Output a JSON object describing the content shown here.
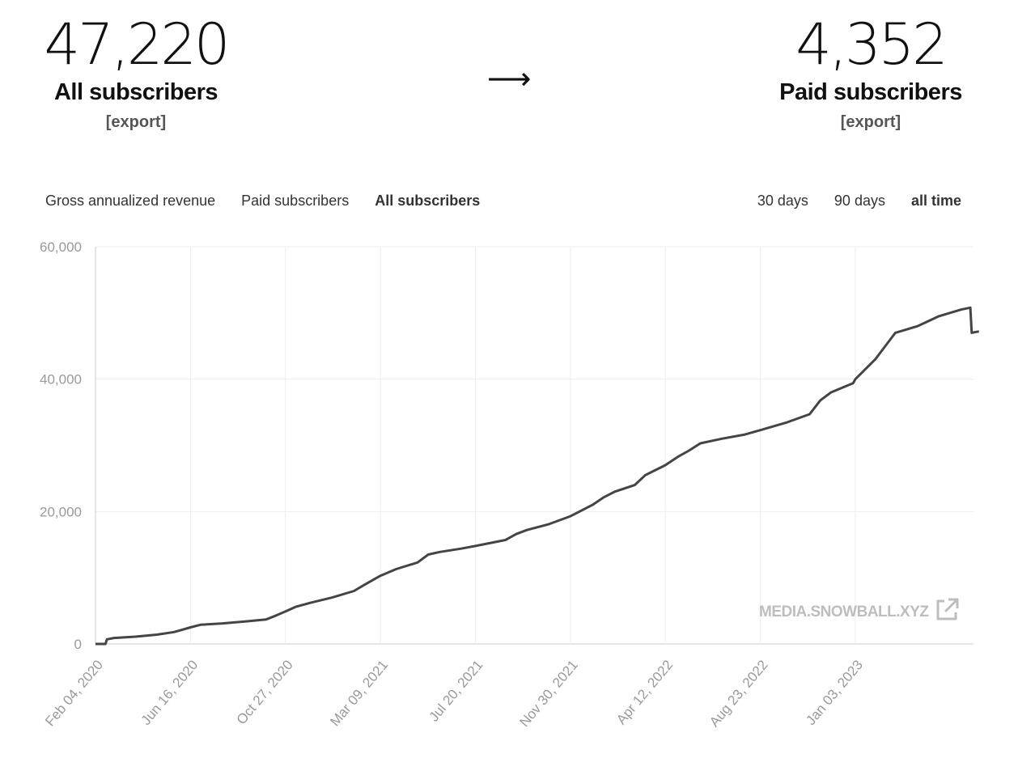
{
  "summary": {
    "all": {
      "value": "47,220",
      "label": "All subscribers",
      "export_label": "[export]"
    },
    "arrow": "⟶",
    "paid": {
      "value": "4,352",
      "label": "Paid subscribers",
      "export_label": "[export]"
    }
  },
  "tabs": [
    {
      "label": "Gross annualized revenue",
      "active": false
    },
    {
      "label": "Paid subscribers",
      "active": false
    },
    {
      "label": "All subscribers",
      "active": true
    }
  ],
  "ranges": [
    {
      "label": "30 days",
      "active": false
    },
    {
      "label": "90 days",
      "active": false
    },
    {
      "label": "all time",
      "active": true
    }
  ],
  "watermark": {
    "text": "MEDIA.SNOWBALL.XYZ",
    "icon": "external-link-icon"
  },
  "colors": {
    "line": "#444444",
    "grid": "#eeeeee",
    "axis": "#cccccc",
    "tick": "#999999"
  },
  "chart_data": {
    "type": "line",
    "x_start": "2020-02-04",
    "ylim": [
      0,
      60000
    ],
    "y_ticks": [
      0,
      20000,
      40000,
      60000
    ],
    "y_tick_labels": [
      "0",
      "20,000",
      "40,000",
      "60,000"
    ],
    "x_ticks": [
      "2020-02-04",
      "2020-06-16",
      "2020-10-27",
      "2021-03-09",
      "2021-07-20",
      "2021-11-30",
      "2022-04-12",
      "2022-08-23",
      "2023-01-03"
    ],
    "x_tick_labels": [
      "Feb 04, 2020",
      "Jun 16, 2020",
      "Oct 27, 2020",
      "Mar 09, 2021",
      "Jul 20, 2021",
      "Nov 30, 2021",
      "Apr 12, 2022",
      "Aug 23, 2022",
      "Jan 03, 2023"
    ],
    "grid": true,
    "series": [
      {
        "points": [
          [
            "2020-02-04",
            0
          ],
          [
            "2020-02-18",
            0
          ],
          [
            "2020-02-20",
            700
          ],
          [
            "2020-03-01",
            900
          ],
          [
            "2020-03-31",
            1100
          ],
          [
            "2020-04-30",
            1400
          ],
          [
            "2020-05-24",
            1800
          ],
          [
            "2020-06-16",
            2500
          ],
          [
            "2020-06-30",
            2900
          ],
          [
            "2020-07-31",
            3100
          ],
          [
            "2020-08-31",
            3400
          ],
          [
            "2020-09-30",
            3700
          ],
          [
            "2020-10-14",
            4300
          ],
          [
            "2020-10-27",
            4900
          ],
          [
            "2020-11-10",
            5600
          ],
          [
            "2020-11-30",
            6200
          ],
          [
            "2020-12-31",
            7000
          ],
          [
            "2021-01-31",
            8000
          ],
          [
            "2021-02-14",
            8900
          ],
          [
            "2021-03-09",
            10300
          ],
          [
            "2021-03-31",
            11300
          ],
          [
            "2021-04-30",
            12300
          ],
          [
            "2021-05-15",
            13500
          ],
          [
            "2021-05-31",
            13900
          ],
          [
            "2021-06-30",
            14400
          ],
          [
            "2021-07-20",
            14800
          ],
          [
            "2021-08-31",
            15700
          ],
          [
            "2021-09-15",
            16600
          ],
          [
            "2021-09-30",
            17200
          ],
          [
            "2021-10-31",
            18100
          ],
          [
            "2021-11-30",
            19300
          ],
          [
            "2021-12-31",
            21000
          ],
          [
            "2022-01-15",
            22100
          ],
          [
            "2022-01-31",
            23000
          ],
          [
            "2022-02-28",
            24000
          ],
          [
            "2022-03-15",
            25500
          ],
          [
            "2022-04-12",
            27000
          ],
          [
            "2022-04-30",
            28300
          ],
          [
            "2022-05-15",
            29200
          ],
          [
            "2022-05-31",
            30300
          ],
          [
            "2022-06-30",
            31000
          ],
          [
            "2022-07-31",
            31600
          ],
          [
            "2022-08-23",
            32300
          ],
          [
            "2022-09-30",
            33500
          ],
          [
            "2022-10-31",
            34700
          ],
          [
            "2022-11-15",
            36800
          ],
          [
            "2022-11-30",
            38000
          ],
          [
            "2022-12-31",
            39400
          ],
          [
            "2023-01-03",
            40000
          ],
          [
            "2023-01-31",
            43000
          ],
          [
            "2023-02-28",
            47000
          ],
          [
            "2023-03-31",
            48000
          ],
          [
            "2023-04-30",
            49500
          ],
          [
            "2023-05-31",
            50500
          ],
          [
            "2023-06-13",
            50800
          ],
          [
            "2023-06-15",
            47000
          ],
          [
            "2023-06-25",
            47200
          ]
        ]
      }
    ]
  }
}
